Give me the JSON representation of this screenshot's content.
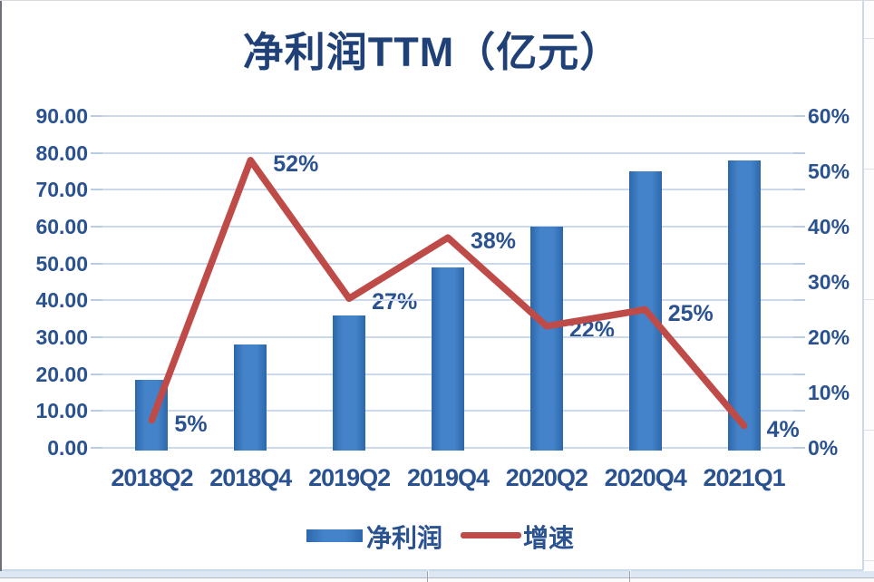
{
  "chart_data": {
    "type": "combo",
    "title": "净利润TTM（亿元）",
    "categories": [
      "2018Q2",
      "2018Q4",
      "2019Q2",
      "2019Q4",
      "2020Q2",
      "2020Q4",
      "2021Q1"
    ],
    "series": [
      {
        "name": "净利润",
        "type": "bar",
        "axis": "left",
        "unit": "亿元",
        "values": [
          18.5,
          28,
          36,
          49,
          60,
          75,
          78
        ]
      },
      {
        "name": "增速",
        "type": "line",
        "axis": "right",
        "values_pct": [
          5,
          52,
          27,
          38,
          22,
          25,
          4
        ],
        "labels": [
          "5%",
          "52%",
          "27%",
          "38%",
          "22%",
          "25%",
          "4%"
        ]
      }
    ],
    "left_axis": {
      "min": 0,
      "max": 90,
      "ticks": [
        "90.00",
        "80.00",
        "70.00",
        "60.00",
        "50.00",
        "40.00",
        "30.00",
        "20.00",
        "10.00",
        "0.00"
      ]
    },
    "right_axis": {
      "min": 0,
      "max": 60,
      "ticks": [
        "60%",
        "50%",
        "40%",
        "30%",
        "20%",
        "10%",
        "0%"
      ]
    },
    "legend": {
      "position": "bottom",
      "items": [
        "净利润",
        "增速"
      ]
    },
    "grid": true
  },
  "colors": {
    "bar": "#4483c9",
    "bar_edge": "#2d67ab",
    "line": "#be4b48",
    "axis_text": "#2a5291",
    "title_text": "#1f4177",
    "gridline": "#ccd9ec",
    "tick": "#b9cce6",
    "worksheet_band": "#dce7f3"
  }
}
